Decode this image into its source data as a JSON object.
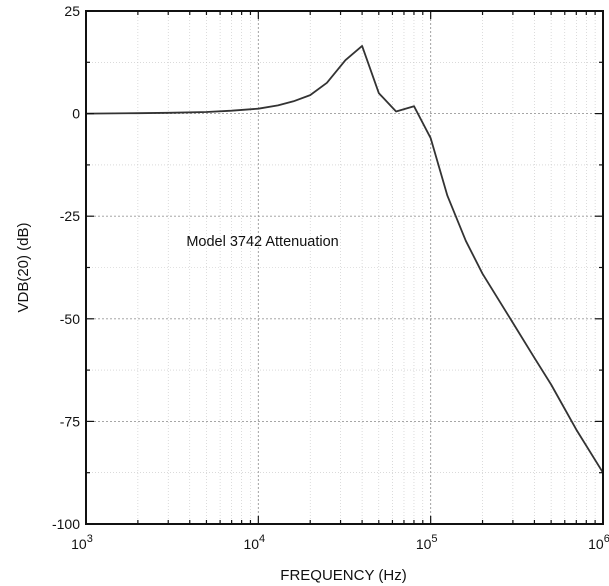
{
  "chart_data": {
    "type": "line",
    "title": "",
    "xlabel": "FREQUENCY  (Hz)",
    "ylabel": "VDB(20)  (dB)",
    "x_scale": "log",
    "xlim": [
      1000,
      1000000
    ],
    "ylim": [
      -100,
      25
    ],
    "grid": true,
    "legend": "none",
    "x_ticks": [
      {
        "value": 1000,
        "base": "10",
        "exp": "3"
      },
      {
        "value": 10000,
        "base": "10",
        "exp": "4"
      },
      {
        "value": 100000,
        "base": "10",
        "exp": "5"
      },
      {
        "value": 1000000,
        "base": "10",
        "exp": "6"
      }
    ],
    "y_ticks": [
      {
        "value": 25,
        "label": "25"
      },
      {
        "value": 0,
        "label": "0"
      },
      {
        "value": -25,
        "label": "-25"
      },
      {
        "value": -50,
        "label": "-50"
      },
      {
        "value": -75,
        "label": "-75"
      },
      {
        "value": -100,
        "label": "-100"
      }
    ],
    "annotations": [
      {
        "text": "Model 3742 Attenuation",
        "x": 10000,
        "y": -31
      }
    ],
    "series": [
      {
        "color": "#333333",
        "x": [
          1000,
          2000,
          3000,
          5000,
          7000,
          10000,
          13000,
          16000,
          20000,
          25000,
          32000,
          40000,
          50000,
          63000,
          80000,
          100000,
          125000,
          160000,
          200000,
          300000,
          400000,
          500000,
          700000,
          1000000
        ],
        "y": [
          0,
          0.1,
          0.2,
          0.4,
          0.7,
          1.2,
          2.0,
          3.0,
          4.5,
          7.5,
          13.0,
          16.5,
          5.0,
          0.5,
          1.8,
          -6.0,
          -20.0,
          -31.0,
          -39.0,
          -51.0,
          -59.5,
          -66.0,
          -77.0,
          -87.5
        ]
      }
    ]
  }
}
